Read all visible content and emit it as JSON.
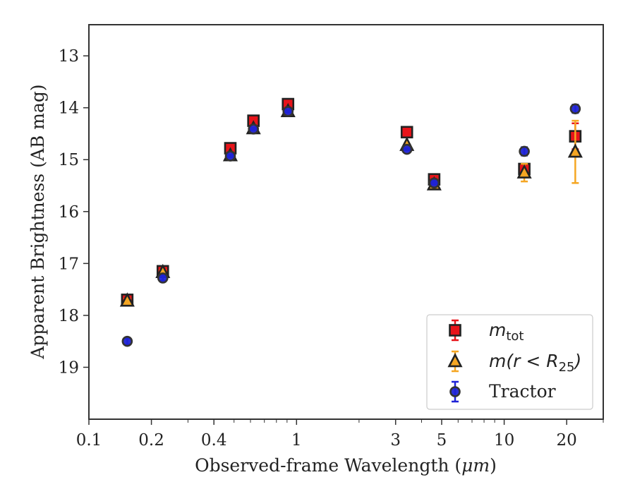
{
  "chart_data": {
    "type": "scatter",
    "xlabel_prefix": "Observed-frame Wavelength (",
    "xlabel_unit": "μm",
    "xlabel_suffix": ")",
    "ylabel": "Apparent Brightness (AB mag)",
    "x_scale": "log",
    "xlim": [
      0.1,
      30
    ],
    "ylim": [
      20.0,
      12.4
    ],
    "y_inverted": true,
    "x_ticks": [
      0.1,
      0.2,
      0.4,
      1,
      3,
      5,
      10,
      20
    ],
    "x_tick_labels": [
      "0.1",
      "0.2",
      "0.4",
      "1",
      "3",
      "5",
      "10",
      "20"
    ],
    "y_ticks": [
      13,
      14,
      15,
      16,
      17,
      18,
      19
    ],
    "y_tick_labels": [
      "13",
      "14",
      "15",
      "16",
      "17",
      "18",
      "19"
    ],
    "grid": false,
    "legend_position": "lower-right",
    "series": [
      {
        "name": "m_tot",
        "legend_text": "m",
        "legend_sub": "tot",
        "marker": "square",
        "color": "#e8141a",
        "edge": "#222222",
        "errcolor": "#e8141a",
        "x": [
          0.153,
          0.227,
          0.48,
          0.62,
          0.91,
          3.4,
          4.6,
          12.5,
          22.0
        ],
        "y": [
          17.7,
          17.15,
          14.78,
          14.25,
          13.93,
          14.47,
          15.38,
          15.18,
          14.55
        ],
        "yerr": [
          0.04,
          0.04,
          0.02,
          0.02,
          0.02,
          0.02,
          0.03,
          0.06,
          0.25
        ]
      },
      {
        "name": "m(r<R25)",
        "legend_text": "m(r < R",
        "legend_sub": "25",
        "legend_tail": ")",
        "marker": "triangle",
        "color": "#f5a623",
        "edge": "#222222",
        "errcolor": "#f5a623",
        "x": [
          0.153,
          0.227,
          0.48,
          0.62,
          0.91,
          3.4,
          4.6,
          12.5,
          22.0
        ],
        "y": [
          17.72,
          17.17,
          14.92,
          14.4,
          14.07,
          14.72,
          15.48,
          15.25,
          14.85
        ],
        "yerr": [
          0.04,
          0.04,
          0.02,
          0.02,
          0.02,
          0.02,
          0.03,
          0.17,
          0.6
        ]
      },
      {
        "name": "Tractor",
        "legend_text": "Tractor",
        "marker": "circle",
        "color": "#1f23d6",
        "edge": "#333333",
        "errcolor": "#1f23d6",
        "x": [
          0.153,
          0.227,
          0.48,
          0.62,
          0.91,
          3.4,
          4.6,
          12.5,
          22.0
        ],
        "y": [
          18.5,
          17.28,
          14.93,
          14.41,
          14.07,
          14.8,
          15.45,
          14.84,
          14.02
        ],
        "yerr": [
          0.06,
          0.05,
          0.02,
          0.02,
          0.02,
          0.02,
          0.03,
          0.08,
          0.08
        ]
      }
    ]
  }
}
